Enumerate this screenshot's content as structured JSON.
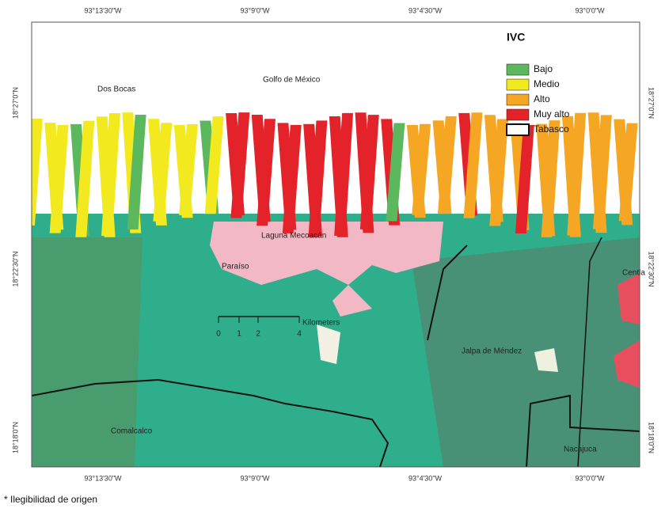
{
  "map": {
    "top_labels": [
      "93°13'30\"W",
      "93°9'0\"W",
      "93°4'30\"W",
      "93°0'0\"W"
    ],
    "bottom_labels": [
      "93°13'30\"W",
      "93°9'0\"W",
      "93°4'30\"W",
      "93°0'0\"W"
    ],
    "left_labels": [
      "18°27'0\"N",
      "18°22'30\"N",
      "18°18'0\"N"
    ],
    "right_labels": [
      "18°27'0\"N",
      "18°22'30\"N",
      "18°18'0\"N"
    ],
    "places": [
      "Dos Bocas",
      "Golfo de México",
      "Laguna Mecoacán",
      "Paraíso",
      "Jalpa de Méndez",
      "Centla",
      "Comalcalco",
      "Nacajuca"
    ],
    "scale": {
      "unit": "Kilometers",
      "ticks": [
        "0",
        "1",
        "2",
        "4"
      ]
    },
    "legend": {
      "title": "IVC",
      "items": [
        {
          "label": "Bajo",
          "color": "#5cb85c"
        },
        {
          "label": "Medio",
          "color": "#f2ea1f"
        },
        {
          "label": "Alto",
          "color": "#f5a623"
        },
        {
          "label": "Muy alto",
          "color": "#e3222a"
        },
        {
          "label": "Tabasco",
          "color": "#ffffff"
        }
      ]
    }
  },
  "footnote": "* Ilegibilidad de origen"
}
